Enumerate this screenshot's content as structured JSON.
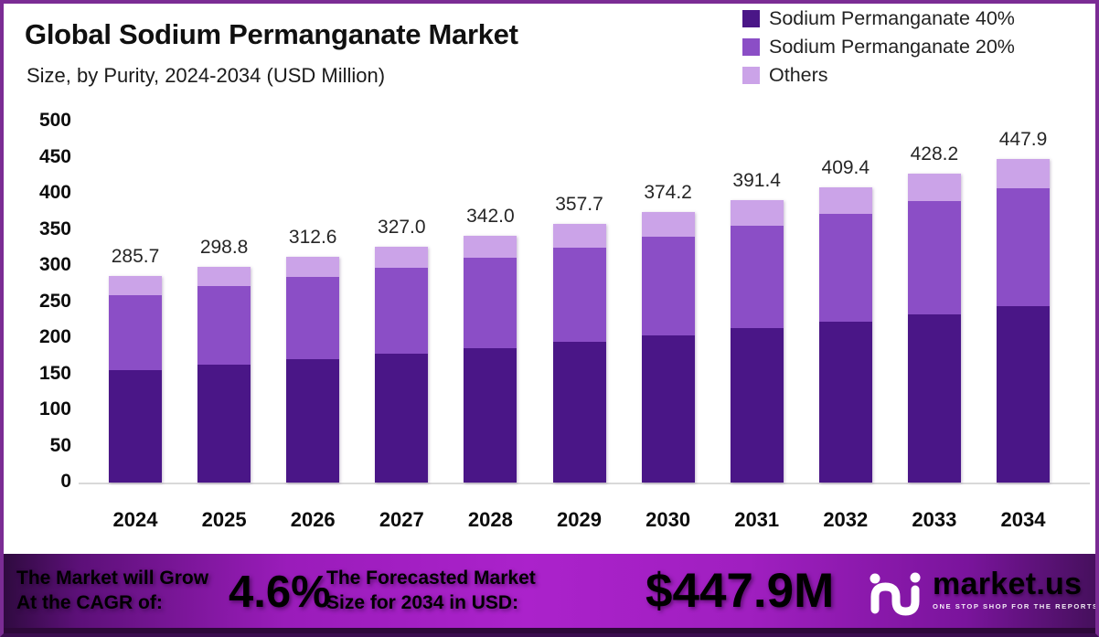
{
  "page": {
    "title": "Global Sodium Permanganate Market",
    "subtitle": "Size, by Purity, 2024-2034 (USD Million)"
  },
  "colors": {
    "seg_dark": "#4a1687",
    "seg_medium": "#8b4ec6",
    "seg_light": "#cba3e8",
    "frame_border": "#7b2c94",
    "banner_bright": "#a81fc6",
    "banner_dark": "#2e0a3e"
  },
  "legend": [
    {
      "label": "Sodium Permanganate 40%",
      "color": "#4a1687"
    },
    {
      "label": "Sodium Permanganate 20%",
      "color": "#8b4ec6"
    },
    {
      "label": "Others",
      "color": "#cba3e8"
    }
  ],
  "chart_data": {
    "type": "bar",
    "stacked": true,
    "title": "Global Sodium Permanganate Market",
    "subtitle": "Size, by Purity, 2024-2034 (USD Million)",
    "xlabel": "",
    "ylabel": "USD Million",
    "ylim": [
      0,
      500
    ],
    "yticks": [
      0,
      50,
      100,
      150,
      200,
      250,
      300,
      350,
      400,
      450,
      500
    ],
    "grid": false,
    "legend_position": "top-right",
    "categories": [
      "2024",
      "2025",
      "2026",
      "2027",
      "2028",
      "2029",
      "2030",
      "2031",
      "2032",
      "2033",
      "2034"
    ],
    "series": [
      {
        "name": "Sodium Permanganate 40%",
        "color": "#4a1687",
        "values": [
          155.7,
          162.8,
          170.4,
          178.2,
          186.4,
          195.0,
          203.9,
          213.3,
          223.1,
          233.4,
          244.1
        ]
      },
      {
        "name": "Sodium Permanganate 20%",
        "color": "#8b4ec6",
        "values": [
          104.3,
          109.1,
          114.1,
          119.4,
          124.8,
          130.6,
          136.6,
          142.9,
          149.4,
          156.3,
          163.5
        ]
      },
      {
        "name": "Others",
        "color": "#cba3e8",
        "values": [
          25.7,
          26.9,
          28.1,
          29.4,
          30.8,
          32.1,
          33.7,
          35.2,
          36.9,
          38.5,
          40.3
        ]
      }
    ],
    "totals": [
      285.7,
      298.8,
      312.6,
      327.0,
      342.0,
      357.7,
      374.2,
      391.4,
      409.4,
      428.2,
      447.9
    ],
    "total_labels": [
      "285.7",
      "298.8",
      "312.6",
      "327.0",
      "342.0",
      "357.7",
      "374.2",
      "391.4",
      "409.4",
      "428.2",
      "447.9"
    ]
  },
  "footer": {
    "cagr_line1": "The Market will Grow",
    "cagr_line2": "At the CAGR of:",
    "cagr_value": "4.6%",
    "forecast_line1": "The Forecasted Market",
    "forecast_line2": "Size for 2034 in USD:",
    "forecast_value": "$447.9M",
    "brand_name": "market.us",
    "brand_tagline": "ONE STOP SHOP FOR THE REPORTS"
  }
}
